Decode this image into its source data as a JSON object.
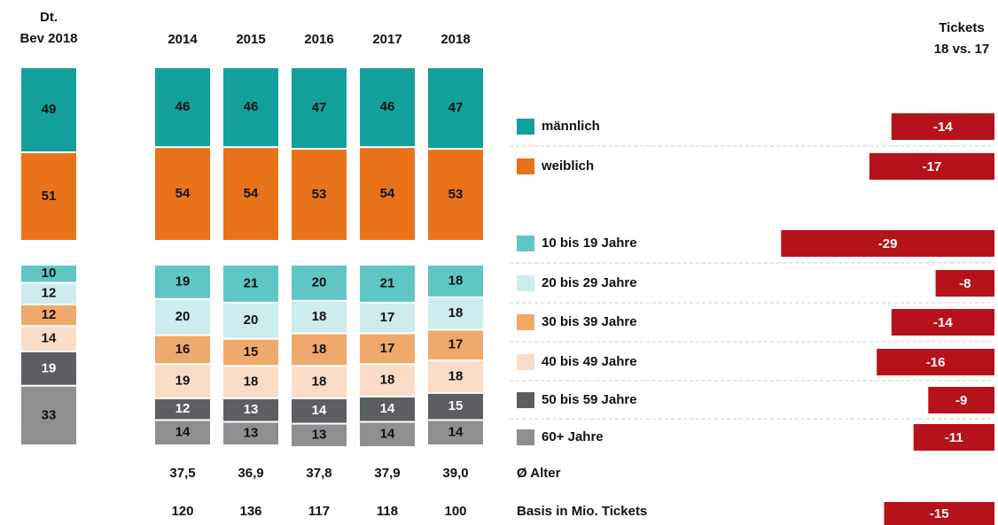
{
  "chart_data": {
    "type": "stacked-bar",
    "reference_label": [
      "Dt.",
      "Bev 2018"
    ],
    "change_label": [
      "Tickets",
      "18 vs. 17"
    ],
    "categories": [
      "2014",
      "2015",
      "2016",
      "2017",
      "2018"
    ],
    "change_color": "#b5121b",
    "groups": [
      {
        "series": [
          {
            "name": "männlich",
            "color": "#13a09d",
            "reference": 49,
            "values": [
              46,
              46,
              47,
              46,
              47
            ],
            "change": -14
          },
          {
            "name": "weiblich",
            "color": "#e8731b",
            "reference": 51,
            "values": [
              54,
              54,
              53,
              54,
              53
            ],
            "change": -17
          }
        ]
      },
      {
        "series": [
          {
            "name": "10 bis 19 Jahre",
            "color": "#5fc6c4",
            "reference": 10,
            "values": [
              19,
              21,
              20,
              21,
              18
            ],
            "change": -29
          },
          {
            "name": "20 bis 29 Jahre",
            "color": "#cdeced",
            "reference": 12,
            "values": [
              20,
              20,
              18,
              17,
              18
            ],
            "change": -8
          },
          {
            "name": "30 bis 39 Jahre",
            "color": "#f0a96c",
            "reference": 12,
            "values": [
              16,
              15,
              18,
              17,
              17
            ],
            "change": -14
          },
          {
            "name": "40 bis 49 Jahre",
            "color": "#fbdcc6",
            "reference": 14,
            "values": [
              19,
              18,
              18,
              18,
              18
            ],
            "change": -16
          },
          {
            "name": "50 bis 59 Jahre",
            "color": "#5a5f61",
            "reference": 19,
            "values": [
              12,
              13,
              14,
              14,
              15
            ],
            "change": -9
          },
          {
            "name": "60+ Jahre",
            "color": "#8c9091",
            "reference": 33,
            "values": [
              14,
              13,
              13,
              14,
              14
            ],
            "change": -11
          }
        ]
      }
    ],
    "rows": [
      {
        "name": "Ø Alter",
        "values": [
          37.5,
          36.9,
          37.8,
          37.9,
          39.0
        ],
        "value_labels": [
          "37,5",
          "36,9",
          "37,8",
          "37,9",
          "39,0"
        ]
      },
      {
        "name": "Basis in Mio. Tickets",
        "values": [
          120,
          136,
          117,
          118,
          100
        ],
        "change": -15
      }
    ]
  }
}
